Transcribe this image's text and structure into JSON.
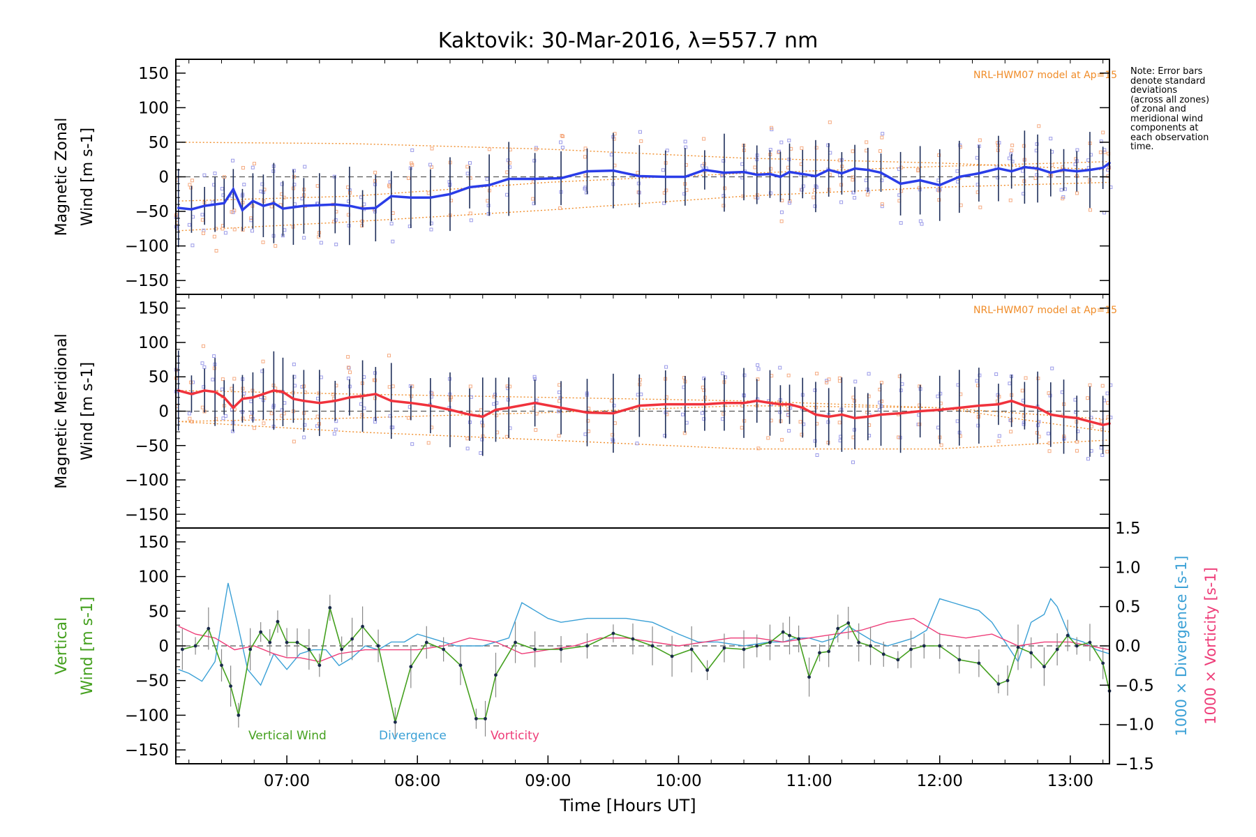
{
  "title": "Kaktovik: 30-Mar-2016, λ=557.7 nm",
  "note": "Note: Error bars\ndenote standard\ndeviations\n(across all zones)\nof zonal and\nmeridional wind\ncomponents at\neach observation\ntime.",
  "colors": {
    "zonal": "#2a3de8",
    "meridional": "#f0323c",
    "vertical": "#44a01e",
    "divergence": "#3aa0d6",
    "vorticity": "#ee3c78",
    "model": "#f08c28",
    "zone_zonal": "#9a9ae8",
    "zone_model": "#f5aa80",
    "errorbar": "#1e2e5a"
  },
  "chart_data": [
    {
      "type": "line",
      "panel": "zonal",
      "ylabel": "Magnetic Zonal\nWind [m s-1]",
      "ylim": [
        -170,
        170
      ],
      "yticks": [
        -150,
        -100,
        -50,
        0,
        50,
        100,
        150
      ],
      "annotation": "NRL-HWM07 model at Ap=15",
      "series": [
        {
          "x": [
            6.17,
            6.27,
            6.37,
            6.45,
            6.52,
            6.59,
            6.66,
            6.74,
            6.82,
            6.9,
            6.97,
            7.05,
            7.13,
            7.25,
            7.37,
            7.48,
            7.58,
            7.68,
            7.8,
            7.95,
            8.1,
            8.25,
            8.4,
            8.55,
            8.7,
            8.9,
            9.1,
            9.3,
            9.5,
            9.7,
            9.9,
            10.05,
            10.2,
            10.35,
            10.5,
            10.6,
            10.7,
            10.78,
            10.85,
            10.95,
            11.05,
            11.15,
            11.25,
            11.35,
            11.45,
            11.55,
            11.7,
            11.85,
            12.0,
            12.15,
            12.3,
            12.45,
            12.55,
            12.65,
            12.75,
            12.85,
            12.95,
            13.05,
            13.15,
            13.25,
            13.3
          ],
          "values": [
            -45,
            -47,
            -42,
            -40,
            -38,
            -18,
            -48,
            -35,
            -42,
            -38,
            -46,
            -44,
            -42,
            -41,
            -40,
            -42,
            -46,
            -45,
            -28,
            -30,
            -30,
            -25,
            -15,
            -12,
            -3,
            -3,
            -2,
            8,
            9,
            1,
            0,
            0,
            10,
            6,
            7,
            3,
            4,
            0,
            7,
            4,
            1,
            10,
            5,
            12,
            10,
            6,
            -10,
            -5,
            -12,
            0,
            5,
            12,
            8,
            14,
            12,
            6,
            10,
            8,
            10,
            13,
            20
          ]
        }
      ],
      "model_curves": [
        {
          "x": [
            6.17,
            7.5,
            9.0,
            10.5,
            12.0,
            13.3
          ],
          "values": [
            50,
            48,
            40,
            27,
            20,
            10
          ]
        },
        {
          "x": [
            6.17,
            7.5,
            9.0,
            10.5,
            12.0,
            13.3
          ],
          "values": [
            -35,
            -28,
            -8,
            5,
            15,
            22
          ]
        },
        {
          "x": [
            6.17,
            7.5,
            9.0,
            10.5,
            12.0,
            13.3
          ],
          "values": [
            -78,
            -65,
            -48,
            -28,
            -15,
            -8
          ]
        }
      ]
    },
    {
      "type": "line",
      "panel": "meridional",
      "ylabel": "Magnetic Meridional\nWind [m s-1]",
      "ylim": [
        -170,
        170
      ],
      "yticks": [
        -150,
        -100,
        -50,
        0,
        50,
        100,
        150
      ],
      "annotation": "NRL-HWM07 model at Ap=15",
      "series": [
        {
          "x": [
            6.17,
            6.27,
            6.37,
            6.45,
            6.52,
            6.59,
            6.66,
            6.74,
            6.82,
            6.9,
            6.97,
            7.05,
            7.13,
            7.25,
            7.37,
            7.48,
            7.58,
            7.68,
            7.8,
            7.95,
            8.1,
            8.25,
            8.4,
            8.5,
            8.6,
            8.7,
            8.9,
            9.1,
            9.3,
            9.5,
            9.7,
            9.9,
            10.05,
            10.2,
            10.35,
            10.5,
            10.6,
            10.7,
            10.78,
            10.85,
            10.95,
            11.05,
            11.15,
            11.25,
            11.35,
            11.45,
            11.55,
            11.7,
            11.85,
            12.0,
            12.15,
            12.3,
            12.45,
            12.55,
            12.65,
            12.75,
            12.85,
            12.95,
            13.05,
            13.15,
            13.25,
            13.3
          ],
          "values": [
            30,
            25,
            30,
            28,
            20,
            5,
            18,
            20,
            25,
            30,
            28,
            18,
            15,
            12,
            15,
            20,
            22,
            25,
            15,
            12,
            8,
            2,
            -5,
            -8,
            2,
            5,
            12,
            5,
            -2,
            -3,
            8,
            10,
            10,
            10,
            12,
            12,
            15,
            12,
            10,
            10,
            5,
            -5,
            -8,
            -5,
            -10,
            -8,
            -5,
            -3,
            0,
            2,
            5,
            8,
            10,
            15,
            8,
            5,
            -5,
            -8,
            -10,
            -15,
            -20,
            -18
          ]
        }
      ],
      "model_curves": [
        {
          "x": [
            6.17,
            7.5,
            9.0,
            10.5,
            12.0,
            13.3
          ],
          "values": [
            30,
            25,
            20,
            15,
            5,
            -12
          ]
        },
        {
          "x": [
            6.17,
            7.5,
            9.0,
            10.5,
            12.0,
            13.3
          ],
          "values": [
            -15,
            -10,
            -2,
            8,
            5,
            -30
          ]
        },
        {
          "x": [
            6.17,
            7.5,
            9.0,
            10.5,
            12.0,
            13.3
          ],
          "values": [
            -15,
            -30,
            -42,
            -55,
            -55,
            -42
          ]
        }
      ]
    },
    {
      "type": "line",
      "panel": "vertical",
      "xlabel": "Time [Hours UT]",
      "xlim": [
        6.15,
        13.3
      ],
      "xticks": [
        "07:00",
        "08:00",
        "09:00",
        "10:00",
        "11:00",
        "12:00",
        "13:00"
      ],
      "xtick_values": [
        7,
        8,
        9,
        10,
        11,
        12,
        13
      ],
      "ylabel_left": "Vertical\nWind [m s-1]",
      "ylim": [
        -170,
        170
      ],
      "yticks": [
        -150,
        -100,
        -50,
        0,
        50,
        100,
        150
      ],
      "ylabel_right_1": "1000 × Divergence [s-1]",
      "ylabel_right_2": "1000 × Vorticity [s-1]",
      "ylim_right": [
        -1.5,
        1.5
      ],
      "yticks_right": [
        -1.5,
        -1.0,
        -0.5,
        0.0,
        0.5,
        1.0,
        1.5
      ],
      "legend": [
        "Vertical Wind",
        "Divergence",
        "Vorticity"
      ],
      "series": [
        {
          "name": "Vertical Wind",
          "axis": "left",
          "x": [
            6.2,
            6.3,
            6.4,
            6.5,
            6.57,
            6.63,
            6.72,
            6.8,
            6.87,
            6.93,
            7.0,
            7.08,
            7.17,
            7.25,
            7.33,
            7.42,
            7.5,
            7.58,
            7.7,
            7.83,
            7.95,
            8.07,
            8.2,
            8.33,
            8.45,
            8.52,
            8.6,
            8.75,
            8.9,
            9.1,
            9.3,
            9.5,
            9.65,
            9.8,
            9.95,
            10.1,
            10.22,
            10.35,
            10.5,
            10.6,
            10.7,
            10.8,
            10.85,
            10.92,
            11.0,
            11.08,
            11.15,
            11.22,
            11.3,
            11.38,
            11.47,
            11.57,
            11.68,
            11.78,
            11.88,
            12.0,
            12.15,
            12.3,
            12.45,
            12.52,
            12.6,
            12.7,
            12.8,
            12.9,
            12.98,
            13.05,
            13.15,
            13.25,
            13.3
          ],
          "values": [
            -5,
            0,
            25,
            -28,
            -58,
            -100,
            -5,
            20,
            5,
            35,
            5,
            5,
            -5,
            -28,
            55,
            -5,
            10,
            28,
            0,
            -110,
            -30,
            5,
            -5,
            -28,
            -105,
            -105,
            -42,
            5,
            -5,
            -5,
            0,
            18,
            10,
            0,
            -15,
            -5,
            -35,
            -3,
            -5,
            0,
            5,
            20,
            15,
            10,
            -45,
            -10,
            -8,
            25,
            33,
            5,
            0,
            -12,
            -20,
            -5,
            0,
            0,
            -20,
            -25,
            -55,
            -50,
            -2,
            -10,
            -30,
            -5,
            15,
            0,
            5,
            -25,
            -65
          ]
        },
        {
          "name": "Divergence",
          "axis": "right",
          "x": [
            6.17,
            6.25,
            6.35,
            6.45,
            6.55,
            6.62,
            6.7,
            6.8,
            6.9,
            7.0,
            7.1,
            7.2,
            7.3,
            7.4,
            7.5,
            7.6,
            7.7,
            7.8,
            7.9,
            8.0,
            8.1,
            8.2,
            8.3,
            8.4,
            8.5,
            8.6,
            8.7,
            8.8,
            8.9,
            9.0,
            9.1,
            9.3,
            9.5,
            9.6,
            9.8,
            10.0,
            10.15,
            10.3,
            10.5,
            10.7,
            10.8,
            10.9,
            11.0,
            11.1,
            11.2,
            11.3,
            11.4,
            11.5,
            11.6,
            11.7,
            11.8,
            11.9,
            12.0,
            12.1,
            12.2,
            12.3,
            12.4,
            12.5,
            12.6,
            12.7,
            12.8,
            12.85,
            12.9,
            13.0,
            13.1,
            13.2,
            13.3
          ],
          "values": [
            -0.3,
            -0.35,
            -0.45,
            -0.2,
            0.8,
            0.3,
            -0.3,
            -0.5,
            -0.1,
            -0.3,
            -0.1,
            -0.05,
            -0.05,
            -0.25,
            -0.15,
            0.0,
            -0.05,
            0.05,
            0.05,
            0.15,
            0.1,
            0.05,
            0.0,
            0.0,
            0.0,
            0.05,
            0.1,
            0.55,
            0.45,
            0.35,
            0.3,
            0.35,
            0.35,
            0.35,
            0.3,
            0.15,
            0.05,
            0.05,
            0.0,
            0.05,
            0.05,
            0.1,
            0.1,
            0.05,
            0.1,
            0.25,
            0.15,
            0.05,
            0.0,
            0.05,
            0.1,
            0.2,
            0.6,
            0.55,
            0.5,
            0.45,
            0.3,
            0.05,
            -0.2,
            0.3,
            0.4,
            0.6,
            0.5,
            0.1,
            0.05,
            -0.05,
            -0.1
          ]
        },
        {
          "name": "Vorticity",
          "axis": "right",
          "x": [
            6.17,
            6.3,
            6.45,
            6.6,
            6.75,
            6.9,
            7.0,
            7.1,
            7.25,
            7.4,
            7.6,
            7.8,
            8.0,
            8.2,
            8.4,
            8.6,
            8.8,
            9.0,
            9.2,
            9.4,
            9.6,
            9.8,
            10.0,
            10.2,
            10.4,
            10.6,
            10.8,
            11.0,
            11.2,
            11.4,
            11.6,
            11.8,
            12.0,
            12.2,
            12.4,
            12.6,
            12.8,
            13.0,
            13.15,
            13.3
          ],
          "values": [
            0.25,
            0.15,
            0.1,
            -0.05,
            0.0,
            -0.1,
            -0.15,
            -0.15,
            -0.2,
            -0.1,
            -0.05,
            -0.05,
            -0.05,
            0.0,
            0.1,
            0.05,
            -0.1,
            -0.05,
            0.0,
            0.1,
            0.1,
            0.05,
            0.0,
            0.05,
            0.1,
            0.1,
            0.05,
            0.1,
            0.15,
            0.2,
            0.3,
            0.35,
            0.15,
            0.1,
            0.15,
            0.0,
            0.05,
            0.05,
            0.0,
            -0.05
          ]
        }
      ]
    }
  ]
}
